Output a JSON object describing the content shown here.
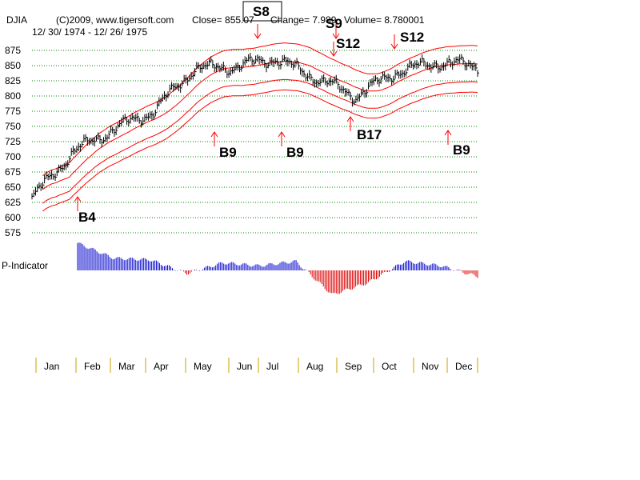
{
  "header": {
    "symbol": "DJIA",
    "copyright": "(C)2009, www.tigersoft.com",
    "close": "Close=  855.07",
    "change": "Change= 7.989",
    "volume": "Volume= 8.780001",
    "date_range": "12/ 30/ 1974 - 12/ 26/ 1975"
  },
  "colors": {
    "price": "#000000",
    "bands": "#ff0000",
    "grid": "#008000",
    "indicator_pos": "#0000cc",
    "indicator_neg": "#dd0000",
    "month_tick": "#c8a000"
  },
  "chart_data": [
    {
      "type": "line",
      "title": "DJIA",
      "ylim": [
        575,
        875
      ],
      "yticks": [
        875,
        850,
        825,
        800,
        775,
        750,
        725,
        700,
        675,
        650,
        625,
        600,
        575
      ],
      "x": [
        "Jan",
        "Feb",
        "Mar",
        "Apr",
        "May",
        "Jun",
        "Jul",
        "Aug",
        "Sep",
        "Oct",
        "Nov",
        "Dec"
      ],
      "grid": true,
      "series": [
        {
          "values": [
            632,
            707,
            745,
            775,
            845,
            848,
            862,
            830,
            800,
            840,
            855,
            850
          ]
        }
      ],
      "signals": [
        {
          "label": "B4",
          "month": "Jan",
          "type": "buy"
        },
        {
          "label": "B9",
          "month": "May",
          "type": "buy"
        },
        {
          "label": "S8",
          "month": "Jul",
          "type": "sell"
        },
        {
          "label": "B9",
          "month": "Jul",
          "type": "buy"
        },
        {
          "label": "S9",
          "month": "Aug",
          "type": "sell"
        },
        {
          "label": "S12",
          "month": "Aug",
          "type": "sell"
        },
        {
          "label": "B17",
          "month": "Sep",
          "type": "buy"
        },
        {
          "label": "S12",
          "month": "Oct",
          "type": "sell"
        },
        {
          "label": "B9",
          "month": "Dec",
          "type": "buy"
        }
      ]
    },
    {
      "type": "bar",
      "title": "P-Indicator",
      "categories": [
        "Jan",
        "Feb",
        "Mar",
        "Apr",
        "May",
        "Jun",
        "Jul",
        "Aug",
        "Sep",
        "Oct",
        "Nov",
        "Dec"
      ],
      "values": [
        0.9,
        0.4,
        0.35,
        -0.1,
        0.25,
        0.15,
        0.3,
        -0.8,
        -0.4,
        0.3,
        0.15,
        -0.2
      ]
    }
  ],
  "months": [
    "Jan",
    "Feb",
    "Mar",
    "Apr",
    "May",
    "Jun",
    "Jul",
    "Aug",
    "Sep",
    "Oct",
    "Nov",
    "Dec"
  ],
  "indicator_label": "P-Indicator"
}
